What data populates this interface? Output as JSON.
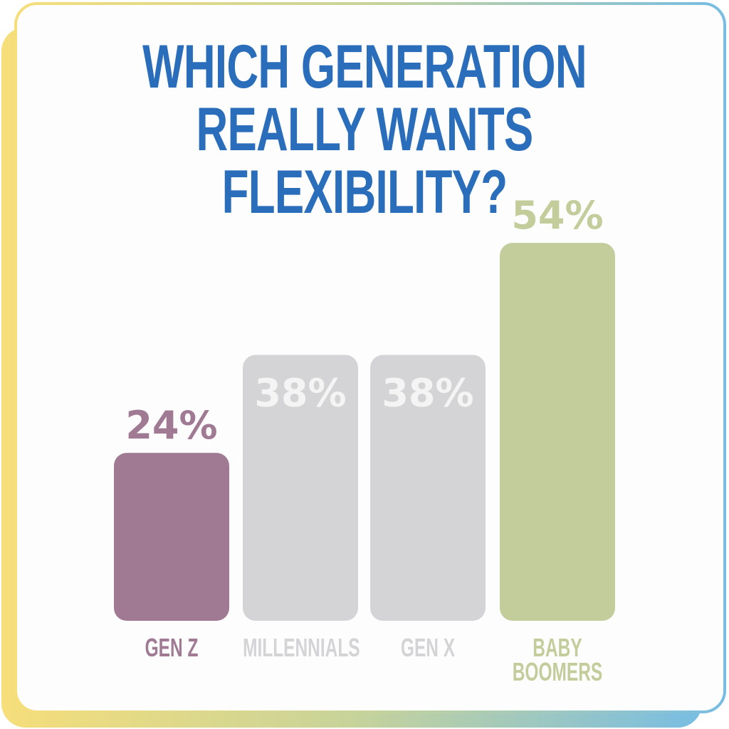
{
  "chart_data": {
    "type": "bar",
    "title": "WHICH GENERATION REALLY WANTS FLEXIBILITY?",
    "categories": [
      "GEN Z",
      "MILLENNIALS",
      "GEN X",
      "BABY BOOMERS"
    ],
    "values": [
      24,
      38,
      38,
      54
    ],
    "value_labels": [
      "24%",
      "38%",
      "38%",
      "54%"
    ],
    "colors": [
      "#a07a93",
      "#d4d4d6",
      "#d4d4d6",
      "#c2cd9b"
    ],
    "label_colors": [
      "#a07a93",
      "#f4f4f4",
      "#f4f4f4",
      "#c2cd9b"
    ],
    "title_color": "#2a6ebb"
  }
}
